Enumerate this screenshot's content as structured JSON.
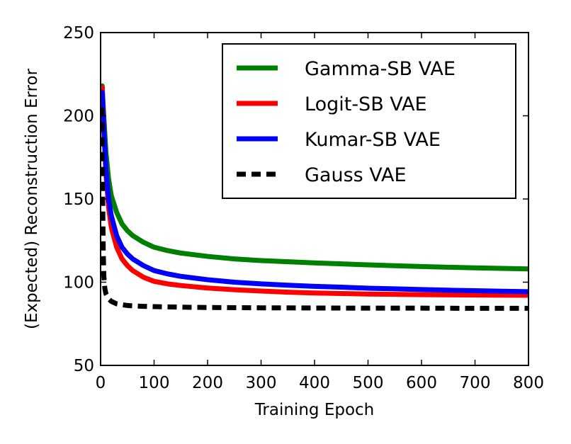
{
  "chart_data": {
    "type": "line",
    "title": "",
    "xlabel": "Training Epoch",
    "ylabel": "(Expected) Reconstruction Error",
    "xlim": [
      0,
      800
    ],
    "ylim": [
      50,
      250
    ],
    "xticks": [
      0,
      100,
      200,
      300,
      400,
      500,
      600,
      700,
      800
    ],
    "yticks": [
      50,
      100,
      150,
      200,
      250
    ],
    "xtick_labels": [
      "0",
      "100",
      "200",
      "300",
      "400",
      "500",
      "600",
      "700",
      "800"
    ],
    "ytick_labels": [
      "50",
      "100",
      "150",
      "200",
      "250"
    ],
    "grid": false,
    "legend_position": "top-right",
    "series": [
      {
        "name": "Gamma-SB VAE",
        "color": "#008000",
        "style": "solid",
        "x": [
          3,
          5,
          10,
          15,
          20,
          30,
          40,
          50,
          60,
          80,
          100,
          125,
          150,
          200,
          250,
          300,
          350,
          400,
          450,
          500,
          550,
          600,
          650,
          700,
          750,
          800
        ],
        "y": [
          218,
          205,
          178,
          162,
          152,
          142,
          135,
          131,
          128,
          124,
          121,
          119,
          117.5,
          115.5,
          114,
          113,
          112.3,
          111.6,
          111,
          110.4,
          109.9,
          109.4,
          109,
          108.6,
          108.3,
          108
        ]
      },
      {
        "name": "Logit-SB VAE",
        "color": "#ff0000",
        "style": "solid",
        "x": [
          3,
          5,
          10,
          15,
          20,
          30,
          40,
          50,
          60,
          80,
          100,
          125,
          150,
          200,
          250,
          300,
          350,
          400,
          450,
          500,
          550,
          600,
          650,
          700,
          750,
          800
        ],
        "y": [
          217,
          200,
          165,
          145,
          133,
          121,
          114,
          110,
          107,
          103,
          100.5,
          99,
          98,
          96.5,
          95.5,
          94.7,
          94,
          93.5,
          93.2,
          92.9,
          92.7,
          92.5,
          92.4,
          92.3,
          92.2,
          92.1
        ]
      },
      {
        "name": "Kumar-SB VAE",
        "color": "#0000ff",
        "style": "solid",
        "x": [
          3,
          5,
          10,
          15,
          20,
          30,
          40,
          50,
          60,
          80,
          100,
          125,
          150,
          200,
          250,
          300,
          350,
          400,
          450,
          500,
          550,
          600,
          650,
          700,
          750,
          800
        ],
        "y": [
          214,
          198,
          168,
          150,
          140,
          128,
          121,
          117,
          114,
          110,
          107,
          105,
          103.5,
          101.5,
          100,
          99,
          98.2,
          97.5,
          97,
          96.4,
          96,
          95.6,
          95.2,
          94.9,
          94.6,
          94.3
        ]
      },
      {
        "name": "Gauss VAE",
        "color": "#000000",
        "style": "dashed",
        "x": [
          2,
          3,
          4,
          5,
          6,
          8,
          10,
          15,
          20,
          30,
          40,
          50,
          60,
          80,
          100,
          150,
          200,
          300,
          400,
          500,
          600,
          700,
          800
        ],
        "y": [
          205,
          175,
          145,
          118,
          104,
          96,
          93,
          90,
          88.5,
          87,
          86.5,
          86,
          85.8,
          85.5,
          85.3,
          85,
          84.8,
          84.6,
          84.5,
          84.4,
          84.4,
          84.3,
          84.3
        ]
      }
    ]
  }
}
